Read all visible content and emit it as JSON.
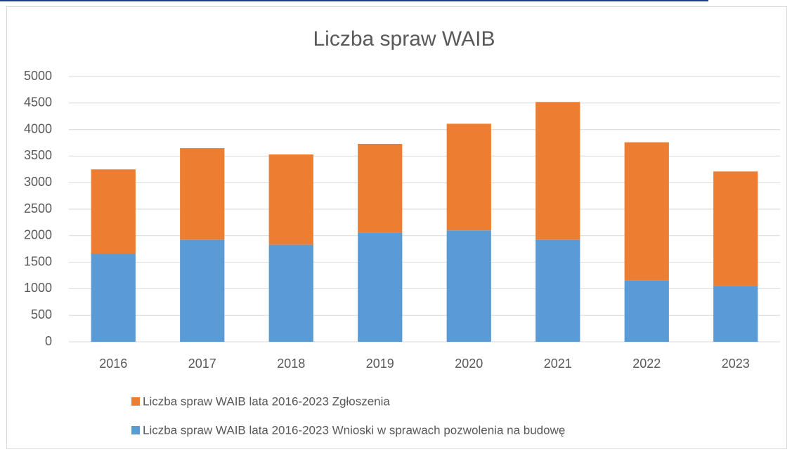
{
  "chart_data": {
    "type": "stacked_bar",
    "title": "Liczba spraw WAIB",
    "categories": [
      "2016",
      "2017",
      "2018",
      "2019",
      "2020",
      "2021",
      "2022",
      "2023"
    ],
    "series": [
      {
        "name": "Liczba spraw WAIB lata 2016-2023 Wnioski w sprawach pozwolenia na budowę",
        "color": "#5b9bd5",
        "values": [
          1660,
          1920,
          1830,
          2060,
          2100,
          1920,
          1160,
          1050
        ]
      },
      {
        "name": "Liczba spraw WAIB lata 2016-2023 Zgłoszenia",
        "color": "#ed7d31",
        "values": [
          1590,
          1730,
          1700,
          1670,
          2010,
          2600,
          2600,
          2160
        ]
      }
    ],
    "ylim": [
      0,
      5000
    ],
    "yticks": [
      0,
      500,
      1000,
      1500,
      2000,
      2500,
      3000,
      3500,
      4000,
      4500,
      5000
    ],
    "grid": true,
    "legend": "bottom"
  }
}
